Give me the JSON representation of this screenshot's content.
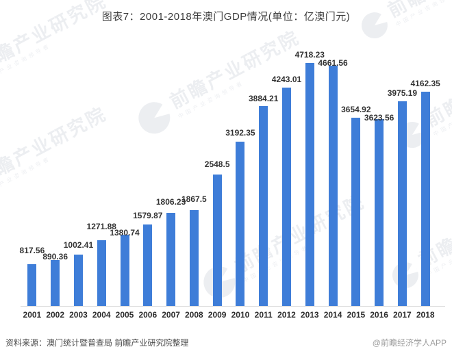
{
  "title": "图表7：2001-2018年澳门GDP情况(单位：亿澳门元)",
  "chart_data": {
    "type": "bar",
    "title": "图表7：2001-2018年澳门GDP情况(单位：亿澳门元)",
    "unit": "亿澳门元",
    "categories": [
      "2001",
      "2002",
      "2003",
      "2004",
      "2005",
      "2006",
      "2007",
      "2008",
      "2009",
      "2010",
      "2011",
      "2012",
      "2013",
      "2014",
      "2015",
      "2016",
      "2017",
      "2018"
    ],
    "values": [
      817.56,
      890.36,
      1002.41,
      1271.88,
      1380.74,
      1579.87,
      1806.23,
      1867.5,
      2548.5,
      3192.35,
      3884.21,
      4243.01,
      4718.23,
      4661.56,
      3654.92,
      3623.56,
      3975.19,
      4162.35
    ],
    "xlabel": "",
    "ylabel": "",
    "ylim": [
      0,
      5000
    ],
    "grid": false,
    "legend": "none",
    "value_labels_shown": true,
    "bar_color": "#3E7DD8",
    "axis_line_color": "#d9d9d9"
  },
  "footer": {
    "source": "资料来源：澳门统计暨普查局 前瞻产业研究院整理",
    "credit": "@前瞻经济学人APP"
  },
  "watermark": {
    "text": "前瞻产业研究院",
    "subtext": "中国产业咨询领导者"
  }
}
